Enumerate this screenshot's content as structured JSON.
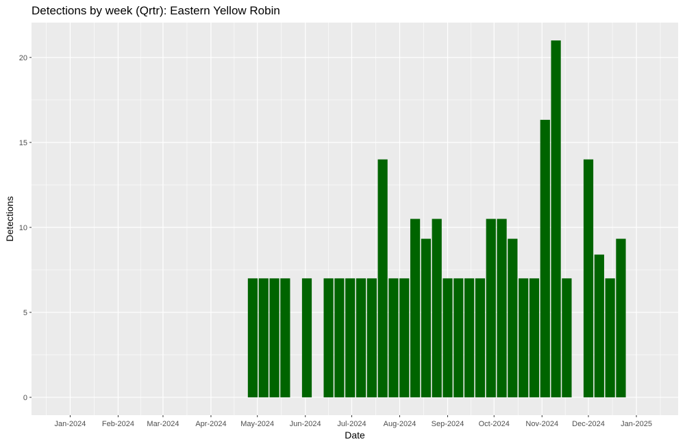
{
  "chart_data": {
    "type": "bar",
    "title": "Detections by week (Qrtr): Eastern Yellow Robin",
    "xlabel": "Date",
    "ylabel": "Detections",
    "x_axis_type": "date",
    "xlim": [
      "2023-12-07",
      "2025-01-28"
    ],
    "ylim": [
      -1.05,
      22.05
    ],
    "y_ticks": [
      0,
      5,
      10,
      15,
      20
    ],
    "x_ticks": [
      {
        "date": "2024-01-01",
        "label": "Jan-2024"
      },
      {
        "date": "2024-02-01",
        "label": "Feb-2024"
      },
      {
        "date": "2024-03-01",
        "label": "Mar-2024"
      },
      {
        "date": "2024-04-01",
        "label": "Apr-2024"
      },
      {
        "date": "2024-05-01",
        "label": "May-2024"
      },
      {
        "date": "2024-06-01",
        "label": "Jun-2024"
      },
      {
        "date": "2024-07-01",
        "label": "Jul-2024"
      },
      {
        "date": "2024-08-01",
        "label": "Aug-2024"
      },
      {
        "date": "2024-09-01",
        "label": "Sep-2024"
      },
      {
        "date": "2024-10-01",
        "label": "Oct-2024"
      },
      {
        "date": "2024-11-01",
        "label": "Nov-2024"
      },
      {
        "date": "2024-12-01",
        "label": "Dec-2024"
      },
      {
        "date": "2025-01-01",
        "label": "Jan-2025"
      }
    ],
    "grid": true,
    "legend": "none",
    "bar_color": "#006400",
    "panel_background": "#EBEBEB",
    "series": [
      {
        "points": [
          {
            "week": "2024-04-28",
            "value": 7
          },
          {
            "week": "2024-05-05",
            "value": 7
          },
          {
            "week": "2024-05-12",
            "value": 7
          },
          {
            "week": "2024-05-19",
            "value": 7
          },
          {
            "week": "2024-06-02",
            "value": 7
          },
          {
            "week": "2024-06-16",
            "value": 7
          },
          {
            "week": "2024-06-23",
            "value": 7
          },
          {
            "week": "2024-06-30",
            "value": 7
          },
          {
            "week": "2024-07-07",
            "value": 7
          },
          {
            "week": "2024-07-14",
            "value": 7
          },
          {
            "week": "2024-07-21",
            "value": 14
          },
          {
            "week": "2024-07-28",
            "value": 7
          },
          {
            "week": "2024-08-04",
            "value": 7
          },
          {
            "week": "2024-08-11",
            "value": 10.5
          },
          {
            "week": "2024-08-18",
            "value": 9.33
          },
          {
            "week": "2024-08-25",
            "value": 10.5
          },
          {
            "week": "2024-09-01",
            "value": 7
          },
          {
            "week": "2024-09-08",
            "value": 7
          },
          {
            "week": "2024-09-15",
            "value": 7
          },
          {
            "week": "2024-09-22",
            "value": 7
          },
          {
            "week": "2024-09-29",
            "value": 10.5
          },
          {
            "week": "2024-10-06",
            "value": 10.5
          },
          {
            "week": "2024-10-13",
            "value": 9.33
          },
          {
            "week": "2024-10-20",
            "value": 7
          },
          {
            "week": "2024-10-27",
            "value": 7
          },
          {
            "week": "2024-11-03",
            "value": 16.33
          },
          {
            "week": "2024-11-10",
            "value": 21
          },
          {
            "week": "2024-11-17",
            "value": 7
          },
          {
            "week": "2024-12-01",
            "value": 14
          },
          {
            "week": "2024-12-08",
            "value": 8.4
          },
          {
            "week": "2024-12-15",
            "value": 7
          },
          {
            "week": "2024-12-22",
            "value": 9.33
          }
        ]
      }
    ]
  }
}
